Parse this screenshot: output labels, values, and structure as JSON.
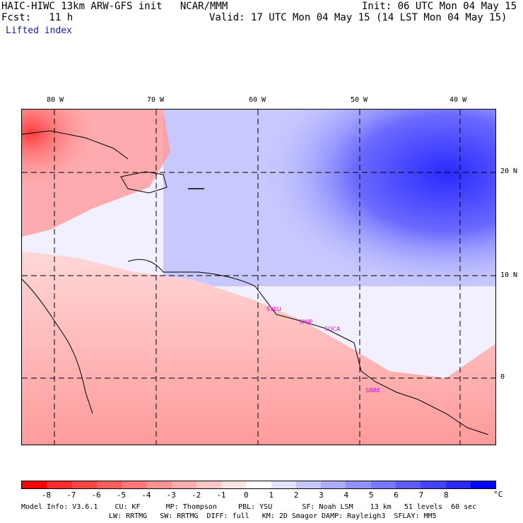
{
  "header": {
    "model_line": "HAIC-HIWC 13km ARW-GFS init   NCAR/MMM",
    "init_line": "Init: 06 UTC Mon 04 May 15",
    "fcst_line": "Fcst:   11 h",
    "valid_line": "Valid: 17 UTC Mon 04 May 15 (14 LST Mon 04 May 15)",
    "field_name": "Lifted index"
  },
  "map": {
    "lon_labels": [
      "80 W",
      "70 W",
      "60 W",
      "50 W",
      "40 W"
    ],
    "lat_labels": [
      "20 N",
      "10 N",
      "0"
    ],
    "stations": [
      "SYEU",
      "SMJP",
      "SOCA",
      "SBBE"
    ]
  },
  "colorbar": {
    "unit": "°C",
    "labels": [
      "-8",
      "-7",
      "-6",
      "-5",
      "-4",
      "-3",
      "-2",
      "-1",
      "0",
      "1",
      "2",
      "3",
      "4",
      "5",
      "6",
      "7",
      "8"
    ],
    "colors": [
      "#ff0000",
      "#ff2b2b",
      "#ff4444",
      "#ff5d5d",
      "#ff7777",
      "#ff9292",
      "#ffacac",
      "#ffc6c6",
      "#ffe2e2",
      "#ffffff",
      "#e2e2ff",
      "#c6c6ff",
      "#acacff",
      "#9292ff",
      "#7777ff",
      "#5d5dff",
      "#4444ff",
      "#2b2bff",
      "#0000ff"
    ]
  },
  "footer": {
    "line1": "Model Info: V3.6.1    CU: KF      MP: Thompson     PBL: YSU       SF: Noah LSM    13 km   51 levels  60 sec",
    "line2": "LW: RRTMG   SW: RRTMG  DIFF: full   KM: 2D Smagor DAMP: Rayleigh3  SFLAY: MM5"
  }
}
